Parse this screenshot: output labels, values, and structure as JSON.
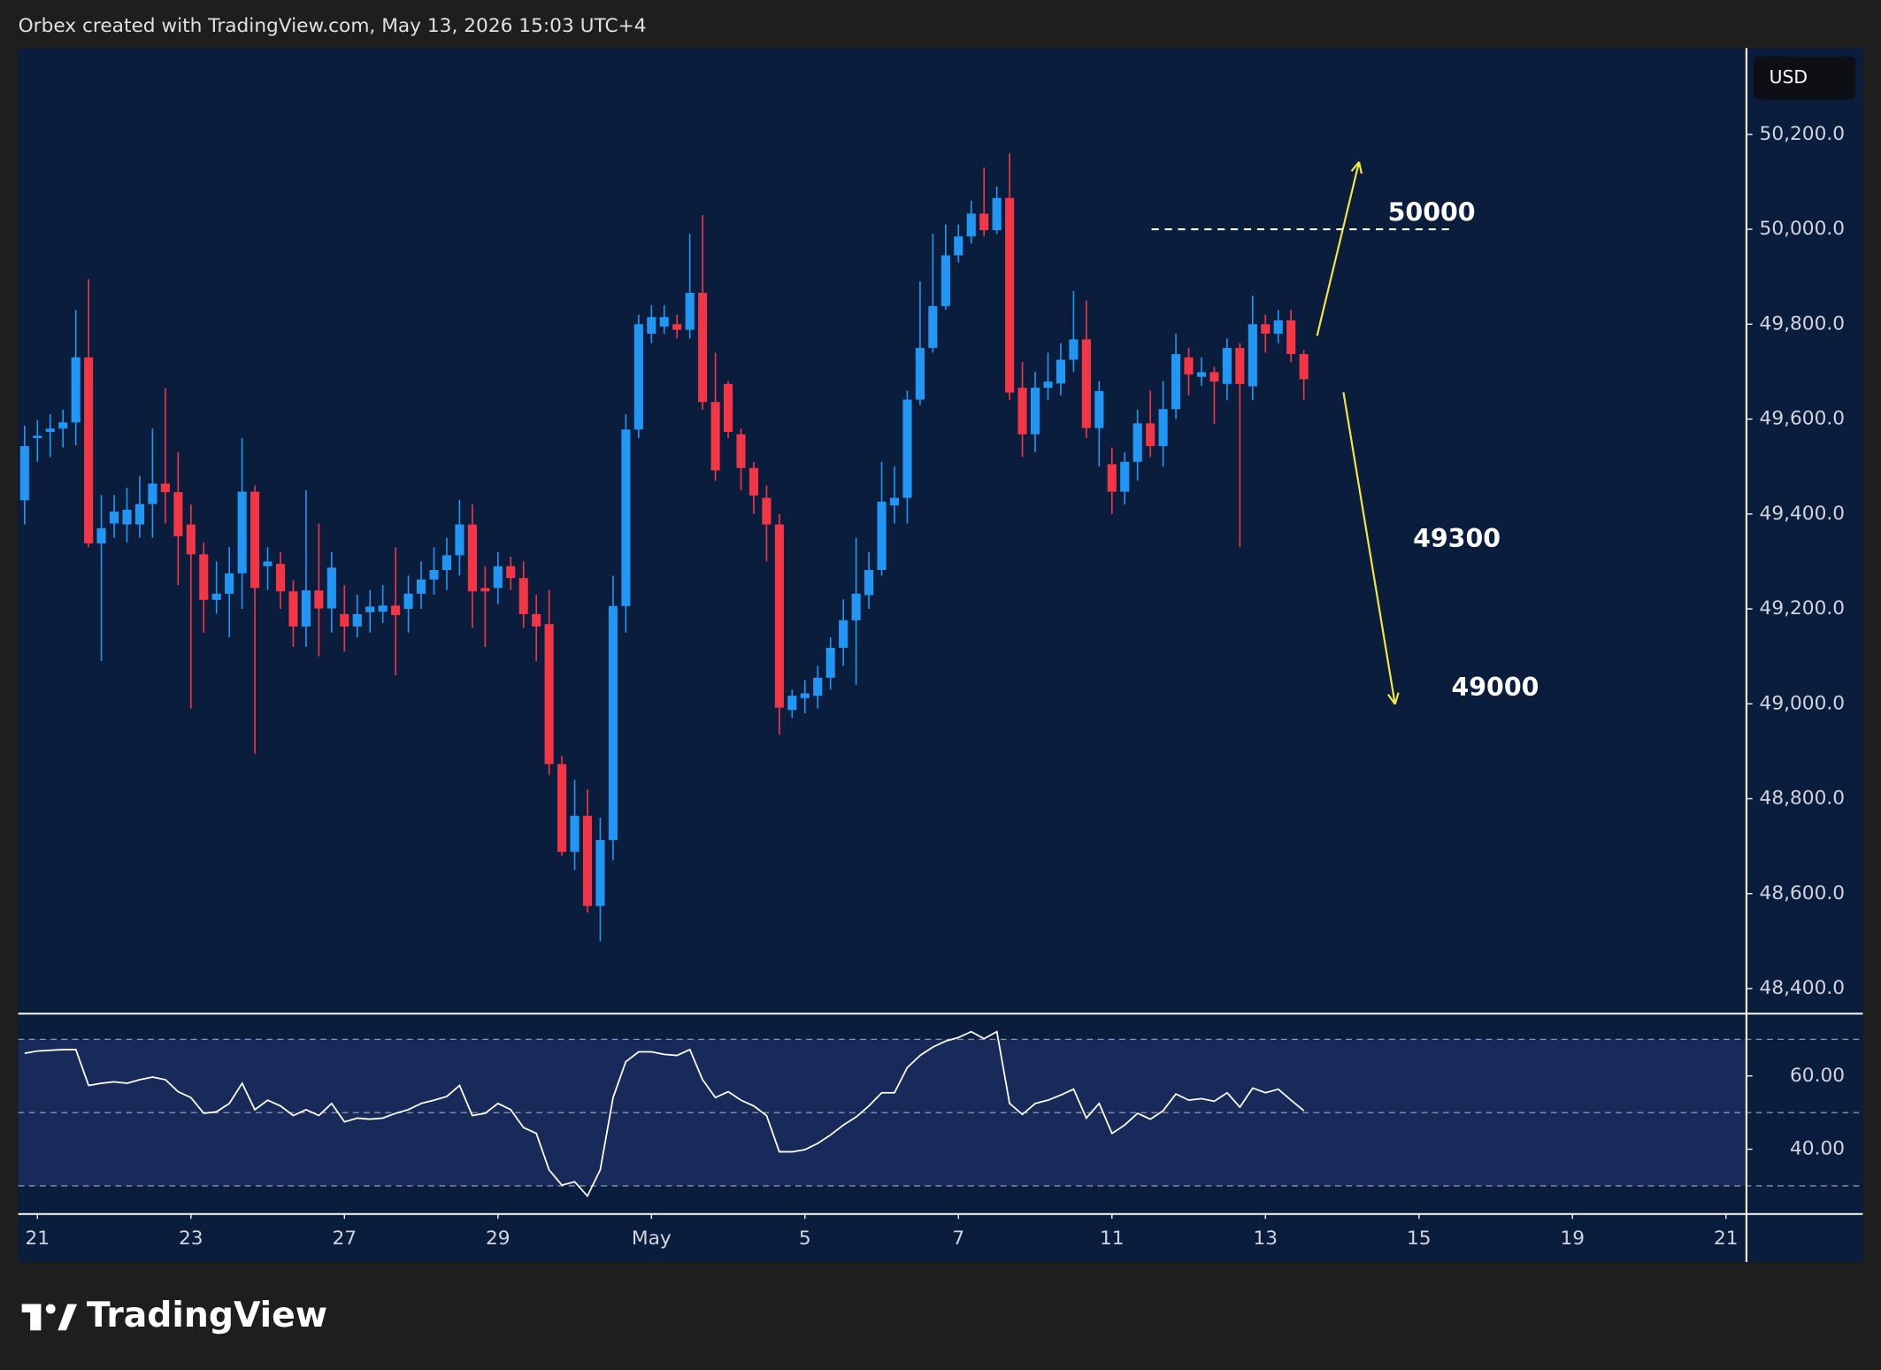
{
  "header": {
    "text": "Orbex created with TradingView.com, May 13, 2026 15:03 UTC+4"
  },
  "currency": "USD",
  "logo": "TradingView",
  "chart_data": {
    "type": "candlestick",
    "up_color": "#2196f3",
    "down_color": "#f23645",
    "open": [
      49429,
      49560,
      49573,
      49580,
      49593,
      49730,
      49338,
      49380,
      49378,
      49378,
      49421,
      49464,
      49446,
      49378,
      49315,
      49219,
      49232,
      49275,
      49447,
      49290,
      49295,
      49237,
      49163,
      49239,
      49201,
      49189,
      49163,
      49193,
      49194,
      49207,
      49200,
      49232,
      49262,
      49282,
      49313,
      49378,
      49244,
      49244,
      49290,
      49265,
      49189,
      49168,
      48873,
      48688,
      48764,
      48574,
      48713,
      49206,
      49578,
      49780,
      49795,
      49800,
      49788,
      49866,
      49636,
      49674,
      49568,
      49497,
      49434,
      49378,
      48987,
      49012,
      49017,
      49055,
      49118,
      49176,
      49229,
      49282,
      49418,
      49434,
      49641,
      49750,
      49838,
      49945,
      49985,
      50033,
      49998,
      50066,
      49666,
      49568,
      49666,
      49675,
      49725,
      49768,
      49581,
      49505,
      49447,
      49510,
      49591,
      49543,
      49621,
      49730,
      49689,
      49699,
      49674,
      49750,
      49669,
      49800,
      49780,
      49808,
      49737
    ],
    "high": [
      49586,
      49598,
      49610,
      49620,
      49830,
      49895,
      49440,
      49440,
      49455,
      49480,
      49580,
      49665,
      49530,
      49420,
      49340,
      49300,
      49330,
      49560,
      49460,
      49330,
      49320,
      49260,
      49450,
      49380,
      49320,
      49250,
      49230,
      49240,
      49250,
      49330,
      49270,
      49300,
      49330,
      49350,
      49430,
      49420,
      49290,
      49320,
      49310,
      49300,
      49230,
      49240,
      48890,
      48840,
      48820,
      48760,
      49270,
      49610,
      49820,
      49840,
      49840,
      49820,
      49990,
      50030,
      49740,
      49680,
      49580,
      49510,
      49460,
      49400,
      49030,
      49050,
      49080,
      49140,
      49220,
      49350,
      49320,
      49510,
      49500,
      49660,
      49890,
      49990,
      50010,
      50010,
      50060,
      50130,
      50090,
      50160,
      49720,
      49700,
      49740,
      49760,
      49870,
      49850,
      49680,
      49540,
      49530,
      49620,
      49660,
      49680,
      49780,
      49750,
      49730,
      49710,
      49770,
      49760,
      49860,
      49820,
      49830,
      49830,
      49745
    ],
    "low": [
      49378,
      49510,
      49520,
      49540,
      49545,
      49330,
      49090,
      49350,
      49340,
      49350,
      49350,
      49380,
      49250,
      48990,
      49150,
      49190,
      49140,
      49200,
      48895,
      49240,
      49200,
      49120,
      49120,
      49100,
      49150,
      49110,
      49140,
      49150,
      49170,
      49060,
      49150,
      49200,
      49230,
      49240,
      49270,
      49160,
      49120,
      49210,
      49240,
      49160,
      49090,
      48850,
      48680,
      48650,
      48560,
      48500,
      48670,
      49150,
      49560,
      49760,
      49780,
      49770,
      49770,
      49620,
      49470,
      49560,
      49450,
      49400,
      49300,
      48935,
      48970,
      48980,
      48990,
      49030,
      49080,
      49040,
      49200,
      49270,
      49380,
      49380,
      49630,
      49740,
      49830,
      49930,
      49970,
      49985,
      49990,
      49640,
      49520,
      49530,
      49640,
      49650,
      49700,
      49560,
      49500,
      49400,
      49420,
      49470,
      49520,
      49500,
      49600,
      49650,
      49670,
      49590,
      49640,
      49330,
      49640,
      49740,
      49760,
      49720,
      49640
    ],
    "close": [
      49543,
      49565,
      49580,
      49593,
      49730,
      49338,
      49370,
      49405,
      49409,
      49421,
      49464,
      49446,
      49353,
      49315,
      49219,
      49232,
      49275,
      49447,
      49244,
      49300,
      49237,
      49163,
      49239,
      49201,
      49287,
      49163,
      49189,
      49205,
      49207,
      49187,
      49232,
      49262,
      49282,
      49313,
      49378,
      49237,
      49237,
      49290,
      49265,
      49189,
      49163,
      48873,
      48688,
      48764,
      48574,
      48713,
      49206,
      49578,
      49800,
      49815,
      49815,
      49788,
      49866,
      49636,
      49492,
      49573,
      49497,
      49439,
      49378,
      48992,
      49017,
      49022,
      49055,
      49118,
      49176,
      49232,
      49282,
      49426,
      49434,
      49641,
      49750,
      49838,
      49945,
      49985,
      50033,
      49998,
      50066,
      49656,
      49568,
      49666,
      49679,
      49725,
      49768,
      49581,
      49659,
      49447,
      49510,
      49591,
      49543,
      49621,
      49737,
      49694,
      49699,
      49679,
      49750,
      49674,
      49800,
      49780,
      49808,
      49737,
      49684
    ],
    "xlim": [
      -0.5,
      134.6
    ],
    "xticks": [
      {
        "value": 1,
        "label": "21"
      },
      {
        "value": 13,
        "label": "23"
      },
      {
        "value": 25,
        "label": "27"
      },
      {
        "value": 37,
        "label": "29"
      },
      {
        "value": 49,
        "label": "May"
      },
      {
        "value": 61,
        "label": "5"
      },
      {
        "value": 73,
        "label": "7"
      },
      {
        "value": 85,
        "label": "11"
      },
      {
        "value": 97,
        "label": "13"
      },
      {
        "value": 109,
        "label": "15"
      },
      {
        "value": 121,
        "label": "19"
      },
      {
        "value": 133,
        "label": "21"
      }
    ],
    "ylim": [
      48347,
      50382
    ],
    "yticks": [
      {
        "value": 48400,
        "label": "48,400.0"
      },
      {
        "value": 48600,
        "label": "48,600.0"
      },
      {
        "value": 48800,
        "label": "48,800.0"
      },
      {
        "value": 49000,
        "label": "49,000.0"
      },
      {
        "value": 49200,
        "label": "49,200.0"
      },
      {
        "value": 49400,
        "label": "49,400.0"
      },
      {
        "value": 49600,
        "label": "49,600.0"
      },
      {
        "value": 49800,
        "label": "49,800.0"
      },
      {
        "value": 50000,
        "label": "50,000.0"
      },
      {
        "value": 50200,
        "label": "50,200.0"
      }
    ],
    "hline": 50000,
    "annotations": [
      "50000",
      "49300",
      "49000"
    ],
    "rsi": {
      "color": "#ffffff",
      "values": [
        66.2,
        66.8,
        67.0,
        67.2,
        67.2,
        57.4,
        58.0,
        58.4,
        58.0,
        59.0,
        59.7,
        59.0,
        55.7,
        54.1,
        49.8,
        50.2,
        52.5,
        58.0,
        50.8,
        53.4,
        51.8,
        49.2,
        50.8,
        49.2,
        52.5,
        47.5,
        48.5,
        48.2,
        48.5,
        49.8,
        50.8,
        52.5,
        53.4,
        54.4,
        57.4,
        49.2,
        49.8,
        52.5,
        50.8,
        45.9,
        44.3,
        34.4,
        30.2,
        31.1,
        27.2,
        34.4,
        54.1,
        63.9,
        66.6,
        66.6,
        65.9,
        65.6,
        67.2,
        59.0,
        54.1,
        55.7,
        53.4,
        51.8,
        49.2,
        39.3,
        39.3,
        39.9,
        41.6,
        43.9,
        46.6,
        48.8,
        51.8,
        55.4,
        55.4,
        62.3,
        65.6,
        67.9,
        69.5,
        70.5,
        72.1,
        70.2,
        72.1,
        52.5,
        49.5,
        52.5,
        53.4,
        54.8,
        56.4,
        48.5,
        52.5,
        44.3,
        46.6,
        49.8,
        48.2,
        50.5,
        55.1,
        53.4,
        53.8,
        53.1,
        55.4,
        51.5,
        56.7,
        55.4,
        56.4,
        53.4,
        50.5
      ],
      "ylim": [
        22.3,
        77.0
      ],
      "yticks": [
        {
          "value": 60,
          "label": "60.00"
        },
        {
          "value": 40,
          "label": "40.00"
        }
      ],
      "levels": [
        70,
        50,
        30
      ]
    }
  }
}
